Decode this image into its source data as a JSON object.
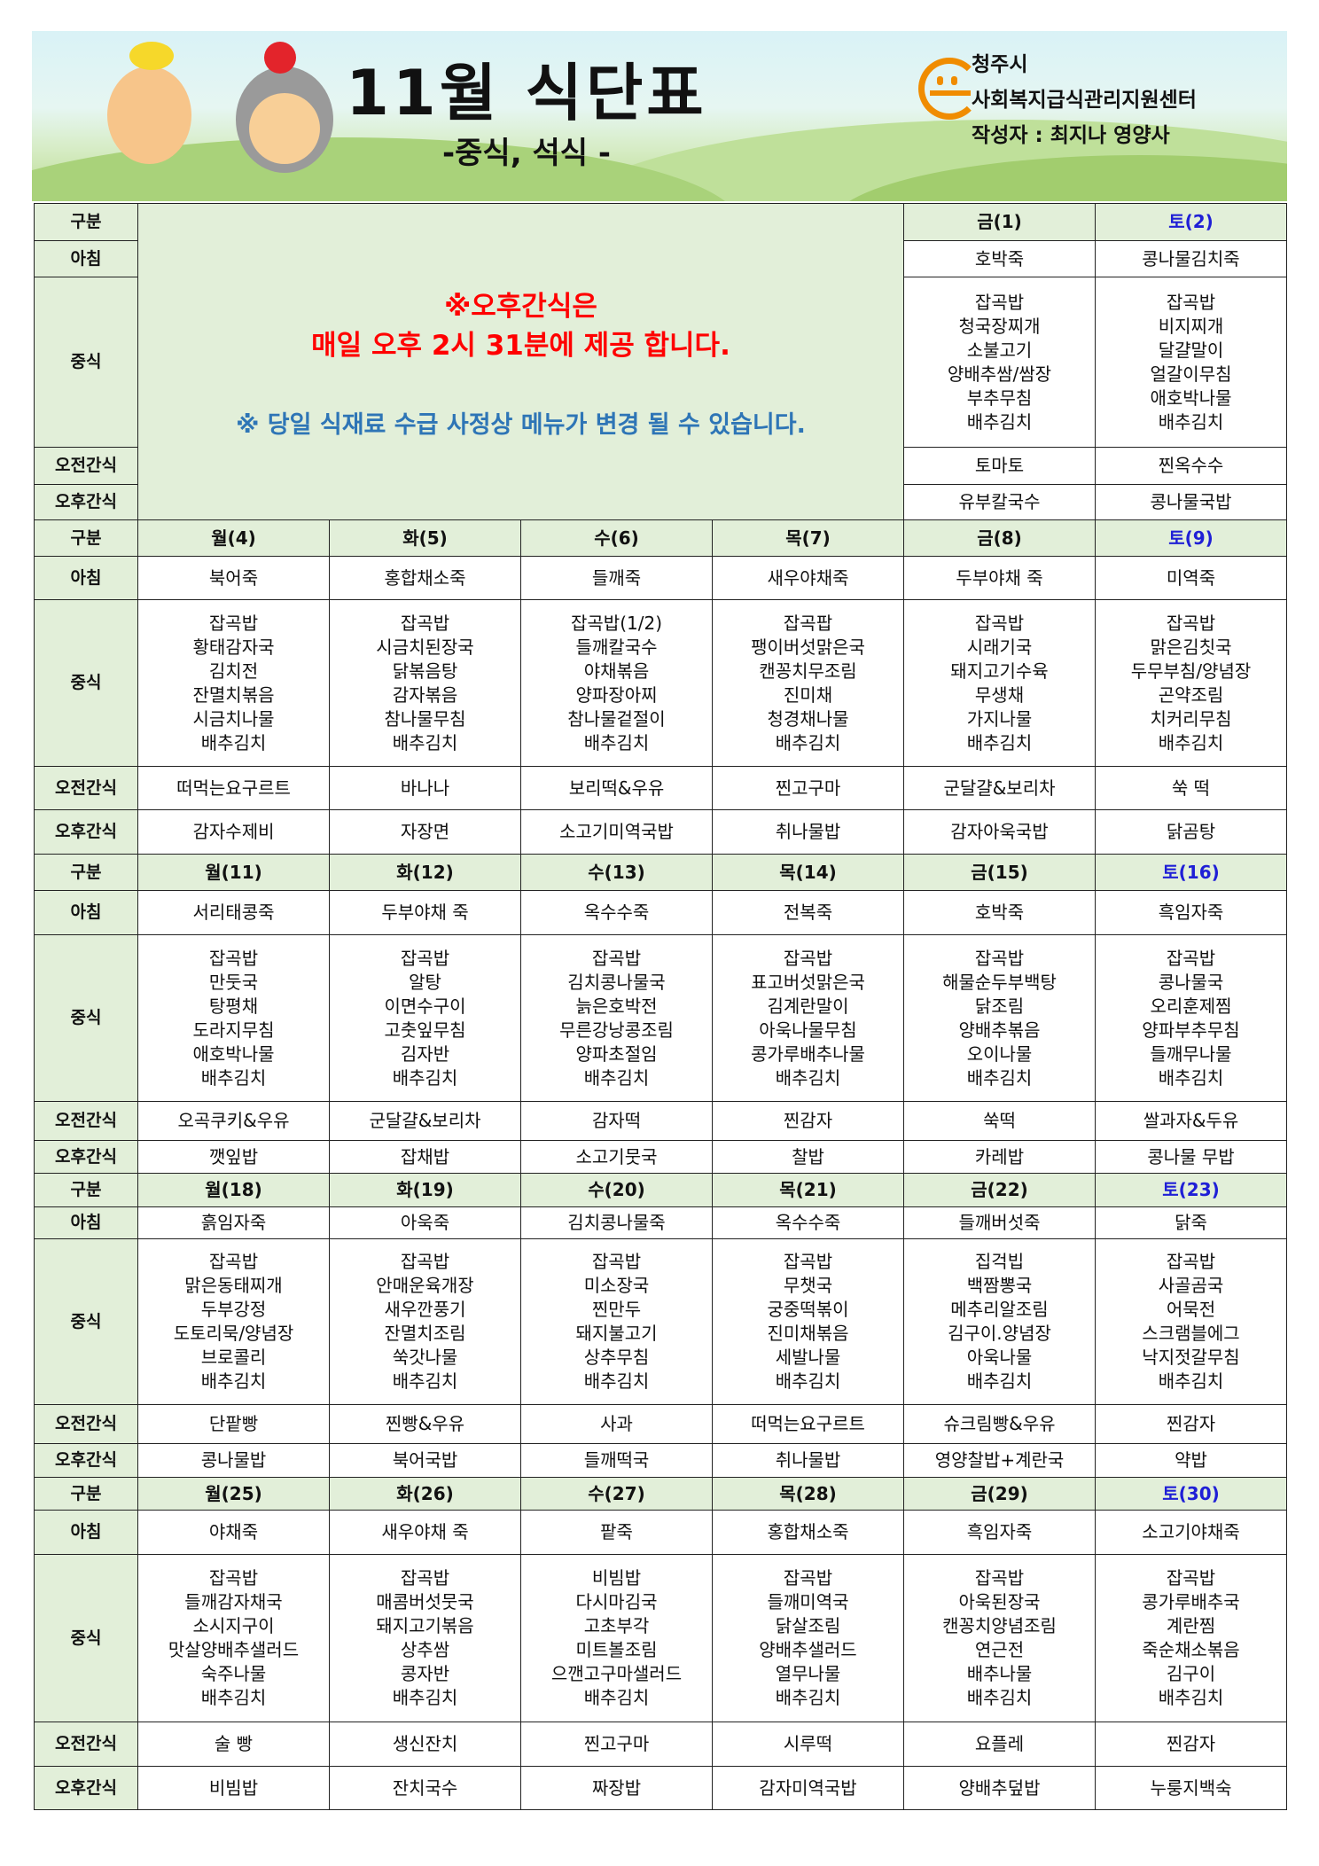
{
  "header": {
    "title": "11월 식단표",
    "subtitle": "-중식, 석식 -",
    "org_city": "청주시",
    "org_name": "사회복지급식관리지원센터",
    "author": "작성자 : 최지나 영양사",
    "logo_color": "#f08c00"
  },
  "colors": {
    "label_bg": "#e2efd9",
    "saturday": "#1f1fd6",
    "notice_red": "#ff0000",
    "notice_blue": "#2e75b6"
  },
  "row_labels": {
    "header": "구분",
    "breakfast": "아침",
    "lunch": "중식",
    "am_snack": "오전간식",
    "pm_snack": "오후간식"
  },
  "notice": {
    "line1": "※오후간식은",
    "line2": "매일 오후 2시 31분에 제공 합니다.",
    "line3": "※ 당일 식재료 수급  사정상 메뉴가 변경 될 수 있습니다."
  },
  "weeks": [
    {
      "days": [
        {
          "day": "금(1)",
          "breakfast": "호박죽",
          "lunch": [
            "잡곡밥",
            "청국장찌개",
            "소불고기",
            "양배추쌈/쌈장",
            "부추무침",
            "배추김치"
          ],
          "am_snack": "토마토",
          "pm_snack": "유부칼국수"
        },
        {
          "day": "토(2)",
          "breakfast": "콩나물김치죽",
          "lunch": [
            "잡곡밥",
            "비지찌개",
            "달걀말이",
            "얼갈이무침",
            "애호박나물",
            "배추김치"
          ],
          "am_snack": "찐옥수수",
          "pm_snack": "콩나물국밥"
        }
      ]
    },
    {
      "days": [
        {
          "day": "월(4)",
          "breakfast": "북어죽",
          "lunch": [
            "잡곡밥",
            "황태감자국",
            "김치전",
            "잔멸치볶음",
            "시금치나물",
            "배추김치"
          ],
          "am_snack": "떠먹는요구르트",
          "pm_snack": "감자수제비"
        },
        {
          "day": "화(5)",
          "breakfast": "홍합채소죽",
          "lunch": [
            "잡곡밥",
            "시금치된장국",
            "닭볶음탕",
            "감자볶음",
            "참나물무침",
            "배추김치"
          ],
          "am_snack": "바나나",
          "pm_snack": "자장면"
        },
        {
          "day": "수(6)",
          "breakfast": "들깨죽",
          "lunch": [
            "잡곡밥(1/2)",
            "들깨칼국수",
            "야채볶음",
            "양파장아찌",
            "참나물겉절이",
            "배추김치"
          ],
          "am_snack": "보리떡&우유",
          "pm_snack": "소고기미역국밥"
        },
        {
          "day": "목(7)",
          "breakfast": "새우야채죽",
          "lunch": [
            "잡곡팝",
            "팽이버섯맑은국",
            "캔꽁치무조림",
            "진미채",
            "청경채나물",
            "배추김치"
          ],
          "am_snack": "찐고구마",
          "pm_snack": "취나물밥"
        },
        {
          "day": "금(8)",
          "breakfast": "두부야채 죽",
          "lunch": [
            "잡곡밥",
            "시래기국",
            "돼지고기수육",
            "무생채",
            "가지나물",
            "배추김치"
          ],
          "am_snack": "군달걀&보리차",
          "pm_snack": "감자아욱국밥"
        },
        {
          "day": "토(9)",
          "breakfast": "미역죽",
          "lunch": [
            "잡곡밥",
            "맑은김칫국",
            "두무부침/양념장",
            "곤약조림",
            "치커리무침",
            "배추김치"
          ],
          "am_snack": "쑥 떡",
          "pm_snack": "닭곰탕"
        }
      ]
    },
    {
      "days": [
        {
          "day": "월(11)",
          "breakfast": "서리태콩죽",
          "lunch": [
            "잡곡밥",
            "만둣국",
            "탕평채",
            "도라지무침",
            "애호박나물",
            "배추김치"
          ],
          "am_snack": "오곡쿠키&우유",
          "pm_snack": "깻잎밥"
        },
        {
          "day": "화(12)",
          "breakfast": "두부야채 죽",
          "lunch": [
            "잡곡밥",
            "알탕",
            "이면수구이",
            "고춧잎무침",
            "김자반",
            "배추김치"
          ],
          "am_snack": "군달걀&보리차",
          "pm_snack": "잡채밥"
        },
        {
          "day": "수(13)",
          "breakfast": "옥수수죽",
          "lunch": [
            "잡곡밥",
            "김치콩나물국",
            "늙은호박전",
            "무른강낭콩조림",
            "양파초절임",
            "배추김치"
          ],
          "am_snack": "감자떡",
          "pm_snack": "소고기뭇국"
        },
        {
          "day": "목(14)",
          "breakfast": "전복죽",
          "lunch": [
            "잡곡밥",
            "표고버섯맑은국",
            "김계란말이",
            "아욱나물무침",
            "콩가루배추나물",
            "배추김치"
          ],
          "am_snack": "찐감자",
          "pm_snack": "찰밥"
        },
        {
          "day": "금(15)",
          "breakfast": "호박죽",
          "lunch": [
            "잡곡밥",
            "해물순두부백탕",
            "닭조림",
            "양배추볶음",
            "오이나물",
            "배추김치"
          ],
          "am_snack": "쑥떡",
          "pm_snack": "카레밥"
        },
        {
          "day": "토(16)",
          "breakfast": "흑임자죽",
          "lunch": [
            "잡곡밥",
            "콩나물국",
            "오리훈제찜",
            "양파부추무침",
            "들깨무나물",
            "배추김치"
          ],
          "am_snack": "쌀과자&두유",
          "pm_snack": "콩나물 무밥"
        }
      ]
    },
    {
      "days": [
        {
          "day": "월(18)",
          "breakfast": "흙임자죽",
          "lunch": [
            "잡곡밥",
            "맑은동태찌개",
            "두부강정",
            "도토리묵/양념장",
            "브로콜리",
            "배추김치"
          ],
          "am_snack": "단팥빵",
          "pm_snack": "콩나물밥"
        },
        {
          "day": "화(19)",
          "breakfast": "아욱죽",
          "lunch": [
            "잡곡밥",
            "안매운육개장",
            "새우깐풍기",
            "잔멸치조림",
            "쑥갓나물",
            "배추김치"
          ],
          "am_snack": "찐빵&우유",
          "pm_snack": "북어국밥"
        },
        {
          "day": "수(20)",
          "breakfast": "김치콩나물죽",
          "lunch": [
            "잡곡밥",
            "미소장국",
            "찐만두",
            "돼지불고기",
            "상추무침",
            "배추김치"
          ],
          "am_snack": "사과",
          "pm_snack": "들깨떡국"
        },
        {
          "day": "목(21)",
          "breakfast": "옥수수죽",
          "lunch": [
            "잡곡밥",
            "무챗국",
            "궁중떡볶이",
            "진미채볶음",
            "세발나물",
            "배추김치"
          ],
          "am_snack": "떠먹는요구르트",
          "pm_snack": "취나물밥"
        },
        {
          "day": "금(22)",
          "breakfast": "들깨버섯죽",
          "lunch": [
            "집걱빕",
            "백짬뽕국",
            "메추리알조림",
            "김구이.양념장",
            "아욱나물",
            "배추김치"
          ],
          "am_snack": "슈크림빵&우유",
          "pm_snack": "영양찰밥+계란국"
        },
        {
          "day": "토(23)",
          "breakfast": "닭죽",
          "lunch": [
            "잡곡밥",
            "사골곰국",
            "어묵전",
            "스크램블에그",
            "낙지젓갈무침",
            "배추김치"
          ],
          "am_snack": "찐감자",
          "pm_snack": "약밥"
        }
      ]
    },
    {
      "days": [
        {
          "day": "월(25)",
          "breakfast": "야채죽",
          "lunch": [
            "잡곡밥",
            "들깨감자채국",
            "소시지구이",
            "맛살양배추샐러드",
            "숙주나물",
            "배추김치"
          ],
          "am_snack": "술 빵",
          "pm_snack": "비빔밥"
        },
        {
          "day": "화(26)",
          "breakfast": "새우야채 죽",
          "lunch": [
            "잡곡밥",
            "매콤버섯뭇국",
            "돼지고기볶음",
            "상추쌈",
            "콩자반",
            "배추김치"
          ],
          "am_snack": "생신잔치",
          "pm_snack": "잔치국수"
        },
        {
          "day": "수(27)",
          "breakfast": "팥죽",
          "lunch": [
            "비빔밥",
            "다시마김국",
            "고초부각",
            "미트볼조림",
            "으깬고구마샐러드",
            "배추김치"
          ],
          "am_snack": "찐고구마",
          "pm_snack": "짜장밥"
        },
        {
          "day": "목(28)",
          "breakfast": "홍합채소죽",
          "lunch": [
            "잡곡밥",
            "들깨미역국",
            "닭살조림",
            "양배추샐러드",
            "열무나물",
            "배추김치"
          ],
          "am_snack": "시루떡",
          "pm_snack": "감자미역국밥"
        },
        {
          "day": "금(29)",
          "breakfast": "흑임자죽",
          "lunch": [
            "잡곡밥",
            "아욱된장국",
            "캔꽁치양념조림",
            "연근전",
            "배추나물",
            "배추김치"
          ],
          "am_snack": "요플레",
          "pm_snack": "양배추덮밥"
        },
        {
          "day": "토(30)",
          "breakfast": "소고기야채죽",
          "lunch": [
            "잡곡밥",
            "콩가루배추국",
            "계란찜",
            "죽순채소볶음",
            "김구이",
            "배추김치"
          ],
          "am_snack": "찐감자",
          "pm_snack": "누룽지백숙"
        }
      ]
    }
  ]
}
